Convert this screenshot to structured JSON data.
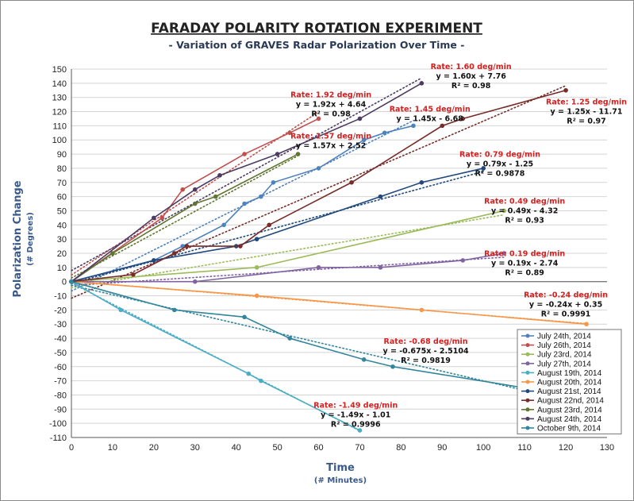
{
  "chart_data": {
    "type": "line",
    "title": "FARADAY POLARITY ROTATION EXPERIMENT",
    "subtitle": "- Variation of GRAVES Radar Polarization Over Time -",
    "xlabel": "Time",
    "xlabel_sub": "(# Minutes)",
    "ylabel": "Polarization Change",
    "ylabel_sub": "(# Degrees)",
    "xlim": [
      0,
      130
    ],
    "ylim": [
      -110,
      150
    ],
    "x_ticks": [
      0,
      10,
      20,
      30,
      40,
      50,
      60,
      70,
      80,
      90,
      100,
      110,
      120,
      130
    ],
    "y_ticks": [
      -110,
      -100,
      -90,
      -80,
      -70,
      -60,
      -50,
      -40,
      -30,
      -20,
      -10,
      0,
      10,
      20,
      30,
      40,
      50,
      60,
      70,
      80,
      90,
      100,
      110,
      120,
      130,
      140,
      150
    ],
    "grid": "horizontal",
    "legend_position": "bottom-right",
    "series": [
      {
        "name": "July 24th, 2014",
        "color": "#4f81bd",
        "x": [
          0,
          20,
          27,
          37,
          42,
          46,
          49,
          60,
          71,
          76,
          83
        ],
        "y": [
          0,
          15,
          25,
          40,
          55,
          60,
          70,
          80,
          100,
          105,
          110
        ]
      },
      {
        "name": "July 26th, 2014",
        "color": "#c0504d",
        "x": [
          0,
          22,
          27,
          42,
          53,
          60
        ],
        "y": [
          0,
          45,
          65,
          90,
          105,
          115
        ]
      },
      {
        "name": "July 23rd, 2014",
        "color": "#9bbb59",
        "x": [
          0,
          45,
          105
        ],
        "y": [
          0,
          10,
          50
        ]
      },
      {
        "name": "July 27th, 2014",
        "color": "#8064a2",
        "x": [
          0,
          30,
          60,
          75,
          95,
          105
        ],
        "y": [
          0,
          0,
          10,
          10,
          15,
          20
        ]
      },
      {
        "name": "August 19th, 2014",
        "color": "#4bacc6",
        "x": [
          0,
          12,
          43,
          46,
          70
        ],
        "y": [
          0,
          -20,
          -65,
          -70,
          -105
        ]
      },
      {
        "name": "August 20th, 2014",
        "color": "#f79646",
        "x": [
          0,
          45,
          85,
          125
        ],
        "y": [
          0,
          -10,
          -20,
          -30
        ]
      },
      {
        "name": "August 21st, 2014",
        "color": "#1f497d",
        "x": [
          0,
          20,
          40,
          45,
          75,
          85,
          100
        ],
        "y": [
          0,
          15,
          25,
          30,
          60,
          70,
          80
        ]
      },
      {
        "name": "August 22nd, 2014",
        "color": "#772c2a",
        "x": [
          0,
          15,
          25,
          28,
          41,
          48,
          68,
          90,
          95,
          120
        ],
        "y": [
          0,
          5,
          20,
          25,
          25,
          40,
          70,
          110,
          115,
          135
        ]
      },
      {
        "name": "August 23rd, 2014",
        "color": "#5f7530",
        "x": [
          0,
          10,
          30,
          35,
          55
        ],
        "y": [
          0,
          20,
          55,
          60,
          90
        ]
      },
      {
        "name": "August 24th, 2014",
        "color": "#4d3b62",
        "x": [
          0,
          20,
          30,
          36,
          50,
          70,
          85
        ],
        "y": [
          0,
          45,
          65,
          75,
          90,
          115,
          140
        ]
      },
      {
        "name": "October 9th, 2014",
        "color": "#31859c",
        "x": [
          0,
          25,
          42,
          53,
          71,
          78,
          110
        ],
        "y": [
          0,
          -20,
          -25,
          -40,
          -55,
          -60,
          -75
        ]
      }
    ],
    "trendlines": [
      {
        "series": "July 26th, 2014",
        "slope": 1.92,
        "intercept": 4.64,
        "x_range": [
          0,
          60
        ]
      },
      {
        "series": "August 24th, 2014",
        "slope": 1.6,
        "intercept": 7.76,
        "x_range": [
          0,
          85
        ]
      },
      {
        "series": "August 23rd, 2014",
        "slope": 1.57,
        "intercept": 2.52,
        "x_range": [
          0,
          55
        ]
      },
      {
        "series": "July 24th, 2014",
        "slope": 1.45,
        "intercept": -6.68,
        "x_range": [
          0,
          83
        ]
      },
      {
        "series": "August 22nd, 2014",
        "slope": 1.25,
        "intercept": -11.71,
        "x_range": [
          0,
          120
        ]
      },
      {
        "series": "August 21st, 2014",
        "slope": 0.79,
        "intercept": -1.25,
        "x_range": [
          0,
          100
        ]
      },
      {
        "series": "July 23rd, 2014",
        "slope": 0.49,
        "intercept": -4.32,
        "x_range": [
          0,
          105
        ]
      },
      {
        "series": "July 27th, 2014",
        "slope": 0.19,
        "intercept": -2.74,
        "x_range": [
          0,
          105
        ]
      },
      {
        "series": "August 20th, 2014",
        "slope": -0.24,
        "intercept": 0.35,
        "x_range": [
          0,
          125
        ]
      },
      {
        "series": "October 9th, 2014",
        "slope": -0.675,
        "intercept": -2.5104,
        "x_range": [
          0,
          110
        ]
      },
      {
        "series": "August 19th, 2014",
        "slope": -1.49,
        "intercept": -1.01,
        "x_range": [
          0,
          70
        ]
      }
    ],
    "annotations": [
      {
        "rate": "Rate: 1.92 deg/min",
        "equation": "y = 1.92x + 4.64",
        "r2": "R² = 0.98",
        "x": 63,
        "y": 130
      },
      {
        "rate": "Rate: 1.60 deg/min",
        "equation": "y = 1.60x + 7.76",
        "r2": "R² = 0.98",
        "x": 97,
        "y": 150
      },
      {
        "rate": "Rate: 1.57 deg/min",
        "equation": "y = 1.57x + 2.52",
        "r2": "",
        "x": 63,
        "y": 101
      },
      {
        "rate": "Rate: 1.45 deg/min",
        "equation": "y = 1.45x - 6.68",
        "r2": "",
        "x": 87,
        "y": 120
      },
      {
        "rate": "Rate: 1.25 deg/min",
        "equation": "y = 1.25x - 11.71",
        "r2": "R² = 0.97",
        "x": 125,
        "y": 125
      },
      {
        "rate": "Rate: 0.79 deg/min",
        "equation": "y = 0.79x - 1.25",
        "r2": "R² = 0.9878",
        "x": 104,
        "y": 88
      },
      {
        "rate": "Rate: 0.49 deg/min",
        "equation": "y = 0.49x - 4.32",
        "r2": "R² = 0.93",
        "x": 110,
        "y": 55
      },
      {
        "rate": "Rate: 0.19 deg/min",
        "equation": "y = 0.19x - 2.74",
        "r2": "R² = 0.89",
        "x": 110,
        "y": 18
      },
      {
        "rate": "Rate: -0.24 deg/min",
        "equation": "y = -0.24x + 0.35",
        "r2": "R² = 0.9991",
        "x": 120,
        "y": -11
      },
      {
        "rate": "Rate: -0.68 deg/min",
        "equation": "y = -0.675x - 2.5104",
        "r2": "R² = 0.9819",
        "x": 86,
        "y": -44
      },
      {
        "rate": "Rate: -1.49 deg/min",
        "equation": "y = -1.49x - 1.01",
        "r2": "R² = 0.9996",
        "x": 69,
        "y": -89
      }
    ]
  }
}
